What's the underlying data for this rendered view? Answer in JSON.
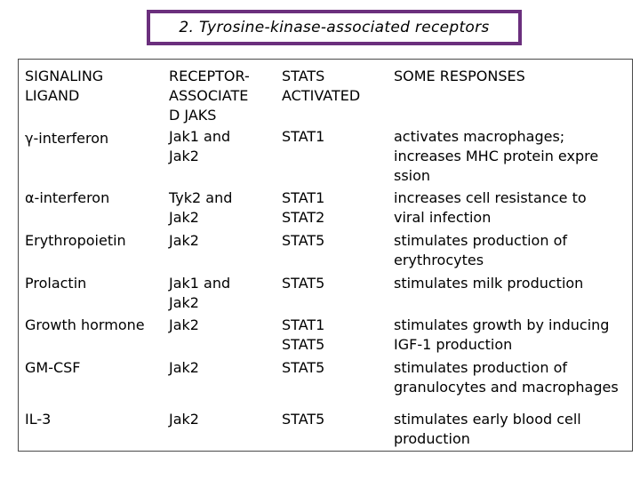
{
  "title": "2. Tyrosine-kinase-associated receptors",
  "headers": {
    "ligand": "SIGNALING\nLIGAND",
    "jaks": "RECEPTOR-\nASSOCIATE\nD JAKS",
    "stats": "STATS\nACTIVATED",
    "responses": "SOME RESPONSES"
  },
  "rows": [
    {
      "ligand": "γ-interferon",
      "jaks": "Jak1 and\nJak2",
      "stats": "STAT1",
      "response": "activates macrophages;\nincreases MHC protein expre\nssion"
    },
    {
      "ligand": "α-interferon",
      "jaks": "Tyk2 and\nJak2",
      "stats": "STAT1\nSTAT2",
      "response": "increases cell resistance to\nviral infection"
    },
    {
      "ligand": "Erythropoietin",
      "jaks": "Jak2",
      "stats": "STAT5",
      "response": "stimulates production of\nerythrocytes"
    },
    {
      "ligand": "Prolactin",
      "jaks": "Jak1 and\nJak2",
      "stats": "STAT5",
      "response": "stimulates milk production"
    },
    {
      "ligand": "Growth hormone",
      "jaks": "Jak2",
      "stats": "STAT1\nSTAT5",
      "response": "stimulates growth by inducing\nIGF-1 production"
    },
    {
      "ligand": "GM-CSF",
      "jaks": "Jak2",
      "stats": "STAT5",
      "response": "stimulates production of\ngranulocytes and macrophages"
    },
    {
      "ligand": "IL-3",
      "jaks": "Jak2",
      "stats": "STAT5",
      "response": "stimulates early blood cell\nproduction"
    }
  ],
  "colors": {
    "title_border": "#6b2f7d",
    "table_border": "#4a4a4a"
  }
}
